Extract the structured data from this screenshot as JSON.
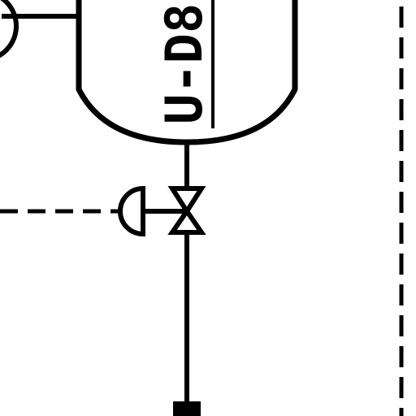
{
  "diagram": {
    "type": "P&ID fragment",
    "vessel": {
      "tag": "U-D8"
    },
    "colors": {
      "line": "#000000",
      "background": "#ffffff"
    },
    "elements": [
      "vessel",
      "nozzle-line",
      "instrument-bubble",
      "outlet-pipe",
      "control-valve",
      "diaphragm-actuator",
      "signal-line",
      "pipe-terminator",
      "boundary-line"
    ]
  }
}
